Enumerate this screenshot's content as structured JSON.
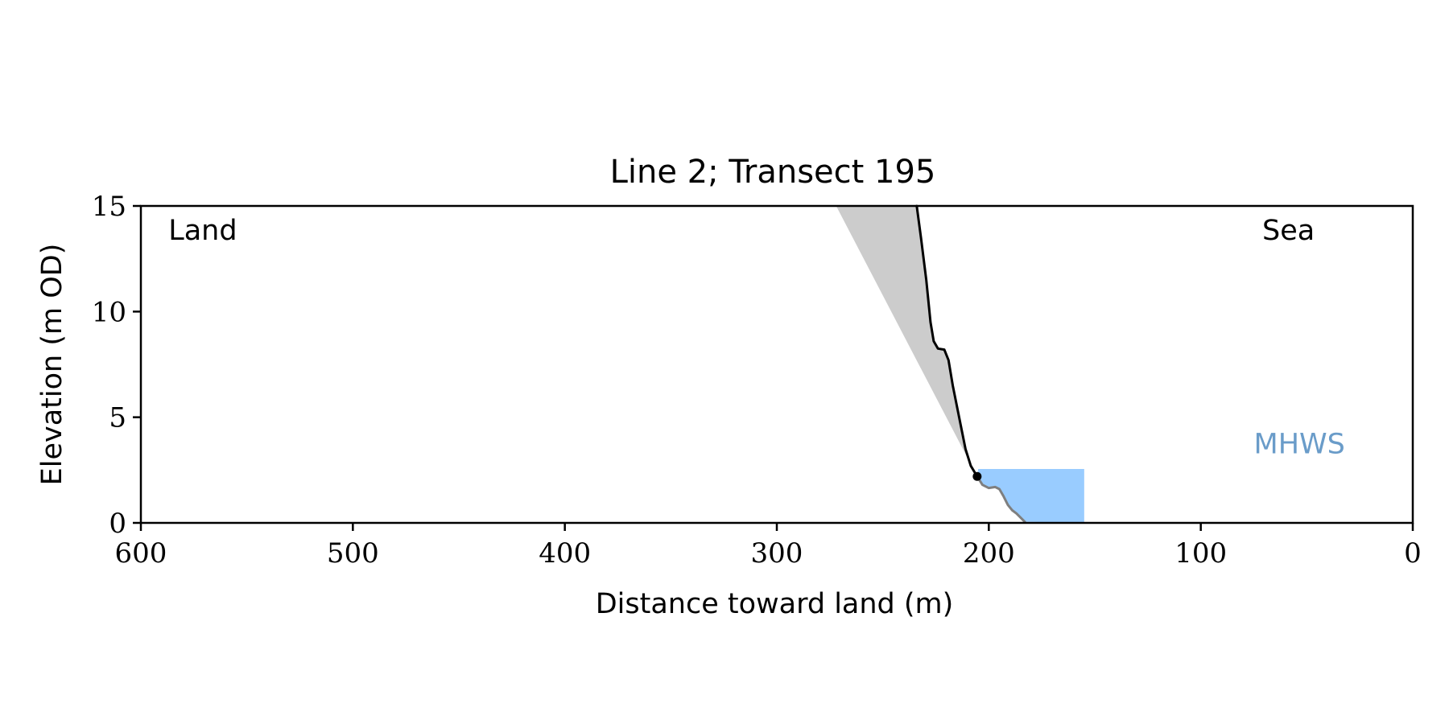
{
  "chart_data": {
    "type": "line",
    "title": "Line 2; Transect 195",
    "xlabel": "Distance toward land (m)",
    "ylabel": "Elevation (m OD)",
    "xlim": [
      600,
      0
    ],
    "ylim": [
      0,
      15
    ],
    "x_reversed": true,
    "xticks": [
      600,
      500,
      400,
      300,
      200,
      100,
      0
    ],
    "yticks": [
      0,
      5,
      10,
      15
    ],
    "grid": false,
    "annotations": [
      {
        "text": "Land",
        "x": 587,
        "y": 13.4,
        "color": "#000000"
      },
      {
        "text": "Sea",
        "x": 71,
        "y": 13.4,
        "color": "#000000"
      },
      {
        "text": "MHWS",
        "x": 75,
        "y": 3.3,
        "color": "#6a9cc9"
      }
    ],
    "mhws": {
      "level": 2.55,
      "x_start": 205,
      "x_end": 155,
      "color": "#99ccff"
    },
    "grey_wedge": {
      "color": "#cccccc",
      "points": [
        [
          272,
          15
        ],
        [
          234,
          15
        ],
        [
          232,
          13.5
        ],
        [
          229.5,
          11.5
        ],
        [
          227.5,
          9.5
        ],
        [
          226,
          8.6
        ],
        [
          224,
          8.25
        ],
        [
          221,
          8.2
        ],
        [
          219,
          7.7
        ],
        [
          217,
          6.5
        ],
        [
          215,
          5.5
        ],
        [
          213,
          4.5
        ],
        [
          211,
          3.5
        ],
        [
          208.5,
          2.7
        ],
        [
          205.5,
          2.2
        ]
      ]
    },
    "series": [
      {
        "color": "#000000",
        "x": [
          234,
          232,
          229.5,
          227.5,
          226,
          224,
          221,
          219,
          217,
          215,
          213,
          211,
          208.5,
          205.5
        ],
        "y": [
          15,
          13.5,
          11.5,
          9.5,
          8.6,
          8.25,
          8.2,
          7.7,
          6.5,
          5.5,
          4.5,
          3.5,
          2.7,
          2.2
        ]
      },
      {
        "color": "#7f7f7f",
        "x": [
          205.5,
          203,
          200,
          197,
          195,
          193,
          191,
          189,
          187,
          185,
          183
        ],
        "y": [
          2.2,
          1.8,
          1.65,
          1.7,
          1.6,
          1.25,
          0.85,
          0.6,
          0.45,
          0.25,
          0.05
        ]
      }
    ],
    "point": {
      "x": 205.5,
      "y": 2.2,
      "color": "#000000"
    }
  }
}
